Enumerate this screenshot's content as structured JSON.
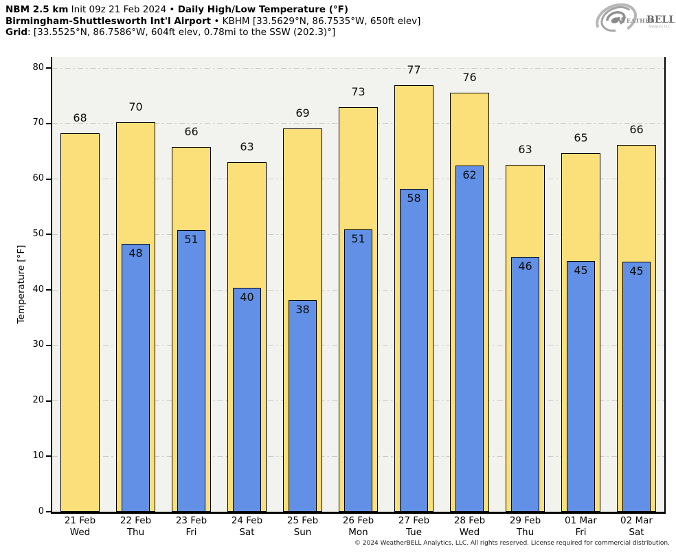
{
  "header": {
    "line1": {
      "model": "NBM 2.5 km",
      "init": " Init 09z 21 Feb 2024 • ",
      "product": "Daily High/Low Temperature (°F)"
    },
    "line2": {
      "station": "Birmingham-Shuttlesworth Int'l Airport",
      "meta": " • KBHM [33.5629°N, 86.7535°W, 650ft elev]"
    },
    "line3": {
      "label": "Grid",
      "value": ": [33.5525°N, 86.7586°W, 604ft elev, 0.78mi to the SSW (202.3)°]"
    }
  },
  "logo": {
    "brand_prefix": "Weather",
    "brand_suffix": "BELL",
    "brand_sub": "Analytics LLC",
    "swirl_color": "#a8a8a8",
    "text_color": "#8a8a8a"
  },
  "footer": {
    "copyright": "© 2024 WeatherBELL Analytics, LLC. All rights reserved. License required for commercial distribution."
  },
  "chart_data": {
    "type": "bar",
    "title": "Daily High/Low Temperature (°F)",
    "ylabel": "Temperature [°F]",
    "xlabel": "",
    "ylim": [
      0,
      82
    ],
    "yticks": [
      0,
      10,
      20,
      30,
      40,
      50,
      60,
      70,
      80
    ],
    "grid": {
      "orientation": "horizontal",
      "style": "dash-dot",
      "color": "#c9c9c9"
    },
    "plot_bg": "#f2f2ef",
    "legend": "none",
    "categories": [
      {
        "date": "21 Feb",
        "day": "Wed"
      },
      {
        "date": "22 Feb",
        "day": "Thu"
      },
      {
        "date": "23 Feb",
        "day": "Fri"
      },
      {
        "date": "24 Feb",
        "day": "Sat"
      },
      {
        "date": "25 Feb",
        "day": "Sun"
      },
      {
        "date": "26 Feb",
        "day": "Mon"
      },
      {
        "date": "27 Feb",
        "day": "Tue"
      },
      {
        "date": "28 Feb",
        "day": "Wed"
      },
      {
        "date": "29 Feb",
        "day": "Thu"
      },
      {
        "date": "01 Mar",
        "day": "Fri"
      },
      {
        "date": "02 Mar",
        "day": "Sat"
      }
    ],
    "series": [
      {
        "name": "Daily High",
        "color": "#fbdf78",
        "bar_width_frac": 0.7,
        "labels": [
          68,
          70,
          66,
          63,
          69,
          73,
          77,
          76,
          63,
          65,
          66
        ],
        "values": [
          68.3,
          70.2,
          65.8,
          63.0,
          69.1,
          73.0,
          76.9,
          75.6,
          62.6,
          64.7,
          66.2
        ]
      },
      {
        "name": "Daily Low",
        "color": "#6190e6",
        "bar_width_frac": 0.51,
        "labels": [
          null,
          48,
          51,
          40,
          38,
          51,
          58,
          62,
          46,
          45,
          45
        ],
        "values": [
          null,
          48.3,
          50.8,
          40.4,
          38.1,
          50.9,
          58.2,
          62.4,
          45.9,
          45.2,
          45.1
        ]
      }
    ]
  }
}
